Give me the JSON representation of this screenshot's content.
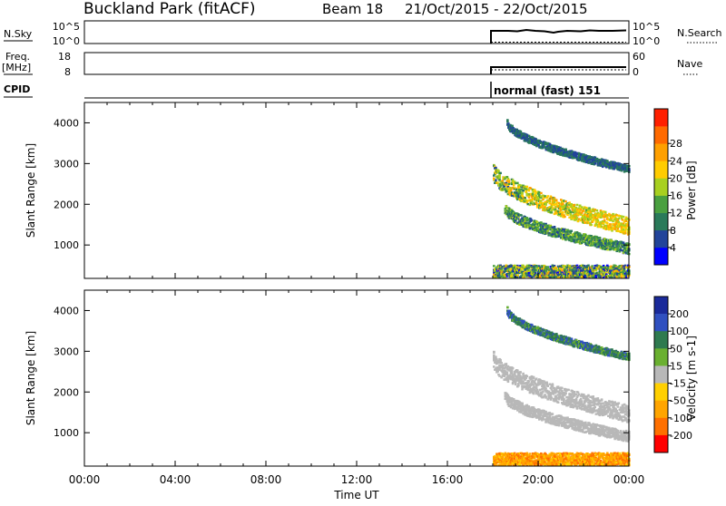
{
  "header": {
    "station": "Buckland Park (fitACF)",
    "beam": "Beam 18",
    "dates": "21/Oct/2015 - 22/Oct/2015"
  },
  "status": {
    "nsky_label": "N.Sky",
    "nsky_top": "10^5",
    "nsky_bot": "10^0",
    "nsearch_label": "N.Search",
    "nsearch_top": "10^5",
    "nsearch_bot": "10^0",
    "freq_label_1": "Freq.",
    "freq_label_2": "[MHz]",
    "freq_top": "18",
    "freq_bot": "8",
    "nave_label": "Nave",
    "nave_top": "60",
    "nave_bot": "0",
    "cpid_label": "CPID",
    "cpid_text": "normal (fast) 151"
  },
  "colors": {
    "power": [
      "#0000ff",
      "#22449a",
      "#2a7a5a",
      "#4aa040",
      "#a8d020",
      "#ffcc00",
      "#ffa000",
      "#ff6a00",
      "#ff2000"
    ],
    "velocity": [
      "#1a2a9a",
      "#3050c0",
      "#2f7a4f",
      "#6ab030",
      "#b8b8b8",
      "#ffd000",
      "#ffa500",
      "#ff7000",
      "#ff0000"
    ]
  },
  "chart_data": [
    {
      "type": "heatmap",
      "name": "power",
      "ylabel": "Slant Range [km]",
      "colorbar_label": "Power [dB]",
      "colorbar_ticks": [
        "4",
        "8",
        "12",
        "16",
        "20",
        "24",
        "28"
      ],
      "ylim": [
        180,
        4500
      ],
      "yticks": [
        "1000",
        "2000",
        "3000",
        "4000"
      ],
      "data_start_hour": 18.0,
      "features": [
        {
          "band": "upper echo",
          "t_start": 18.6,
          "t_end": 24.0,
          "range_start_km": 4000,
          "range_end_km": 2850,
          "power_db": [
            8,
            12
          ]
        },
        {
          "band": "main echo",
          "t_start": 18.0,
          "t_end": 24.0,
          "range_start_km": 2800,
          "range_end_km": 1450,
          "power_db": [
            8,
            28
          ]
        },
        {
          "band": "lower echo",
          "t_start": 18.5,
          "t_end": 24.0,
          "range_start_km": 1900,
          "range_end_km": 900,
          "power_db": [
            8,
            20
          ]
        },
        {
          "band": "near range",
          "t_start": 18.0,
          "t_end": 24.0,
          "range_start_km": 200,
          "range_end_km": 500,
          "power_db": [
            4,
            28
          ]
        }
      ]
    },
    {
      "type": "heatmap",
      "name": "velocity",
      "ylabel": "Slant Range [km]",
      "xlabel": "Time UT",
      "colorbar_label": "Velocity [m s-1]",
      "colorbar_ticks": [
        "200",
        "100",
        "50",
        "15",
        "-15",
        "-50",
        "-100",
        "-200"
      ],
      "ylim": [
        180,
        4500
      ],
      "yticks": [
        "1000",
        "2000",
        "3000",
        "4000"
      ],
      "xticks": [
        "00:00",
        "04:00",
        "08:00",
        "12:00",
        "16:00",
        "20:00",
        "00:00"
      ],
      "xlim_hours": [
        0,
        24
      ],
      "data_start_hour": 18.0,
      "features": [
        {
          "band": "upper echo",
          "t_start": 18.6,
          "t_end": 24.0,
          "range_start_km": 4000,
          "range_end_km": 2850,
          "velocity_ms": [
            15,
            100
          ]
        },
        {
          "band": "main echo",
          "t_start": 18.0,
          "t_end": 24.0,
          "range_start_km": 2800,
          "range_end_km": 1450,
          "velocity_ms": [
            -15,
            15
          ]
        },
        {
          "band": "lower echo",
          "t_start": 18.5,
          "t_end": 24.0,
          "range_start_km": 1900,
          "range_end_km": 900,
          "velocity_ms": [
            -15,
            15
          ]
        },
        {
          "band": "near range",
          "t_start": 18.0,
          "t_end": 24.0,
          "range_start_km": 200,
          "range_end_km": 500,
          "velocity_ms": [
            -100,
            -15
          ]
        }
      ]
    }
  ]
}
